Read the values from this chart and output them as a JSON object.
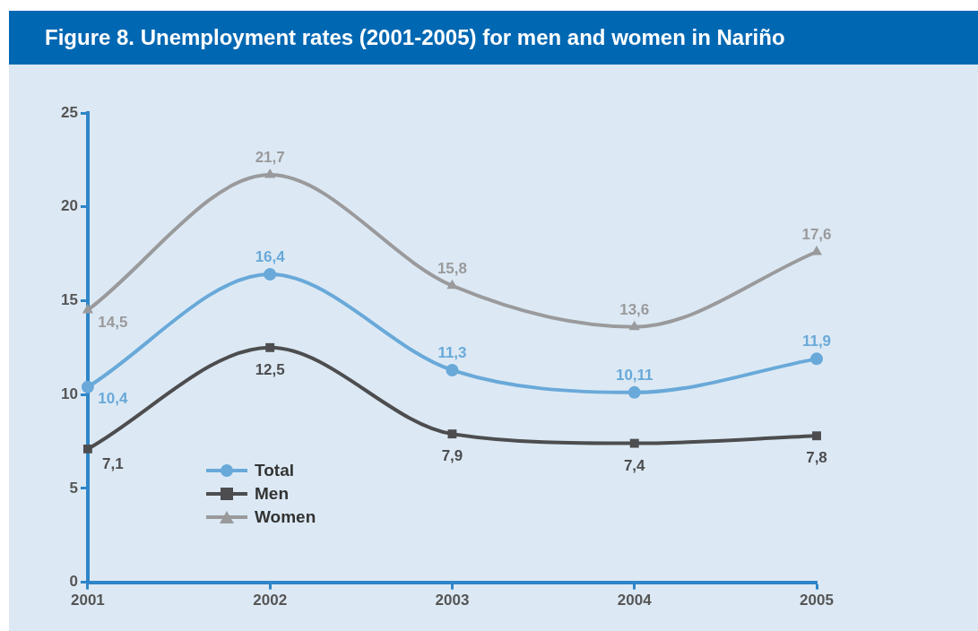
{
  "chart_data": {
    "type": "line",
    "title": "Figure 8. Unemployment rates (2001-2005) for men and women in Nariño",
    "categories": [
      "2001",
      "2002",
      "2003",
      "2004",
      "2005"
    ],
    "series": [
      {
        "name": "Total",
        "color": "#69a9d9",
        "marker": "circle",
        "values": [
          10.4,
          16.4,
          11.3,
          10.11,
          11.9
        ],
        "value_labels": [
          "10,4",
          "16,4",
          "11,3",
          "10,11",
          "11,9"
        ]
      },
      {
        "name": "Men",
        "color": "#4d4d4f",
        "marker": "square",
        "values": [
          7.1,
          12.5,
          7.9,
          7.4,
          7.8
        ],
        "value_labels": [
          "7,1",
          "12,5",
          "7,9",
          "7,4",
          "7,8"
        ]
      },
      {
        "name": "Women",
        "color": "#9a9a9c",
        "marker": "triangle",
        "values": [
          14.5,
          21.7,
          15.8,
          13.6,
          17.6
        ],
        "value_labels": [
          "14,5",
          "21,7",
          "15,8",
          "13,6",
          "17,6"
        ]
      }
    ],
    "ylim": [
      0,
      25
    ],
    "yticks": [
      0,
      5,
      10,
      15,
      20,
      25
    ],
    "grid": false,
    "legend": "bottom left",
    "line_style": "solid"
  }
}
